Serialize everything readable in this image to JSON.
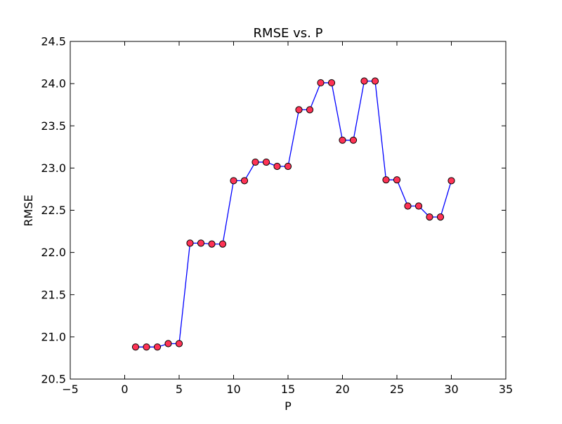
{
  "chart_data": {
    "type": "line",
    "title": "RMSE vs. P",
    "xlabel": "P",
    "ylabel": "RMSE",
    "xlim": [
      -5,
      35
    ],
    "ylim": [
      20.5,
      24.5
    ],
    "xticks": [
      "−5",
      "0",
      "5",
      "10",
      "15",
      "20",
      "25",
      "30",
      "35"
    ],
    "xtick_values": [
      -5,
      0,
      5,
      10,
      15,
      20,
      25,
      30,
      35
    ],
    "yticks": [
      "20.5",
      "21.0",
      "21.5",
      "22.0",
      "22.5",
      "23.0",
      "23.5",
      "24.0",
      "24.5"
    ],
    "ytick_values": [
      20.5,
      21.0,
      21.5,
      22.0,
      22.5,
      23.0,
      23.5,
      24.0,
      24.5
    ],
    "grid": false,
    "series": [
      {
        "line_color": "#0000ff",
        "marker_color": "#ff3355",
        "marker_edge_color": "#000000",
        "x": [
          1,
          2,
          3,
          4,
          5,
          6,
          7,
          8,
          9,
          10,
          11,
          12,
          13,
          14,
          15,
          16,
          17,
          18,
          19,
          20,
          21,
          22,
          23,
          24,
          25,
          26,
          27,
          28,
          29,
          30
        ],
        "values": [
          20.88,
          20.88,
          20.88,
          20.92,
          20.92,
          22.11,
          22.11,
          22.1,
          22.1,
          22.85,
          22.85,
          23.07,
          23.07,
          23.02,
          23.02,
          23.69,
          23.69,
          24.01,
          24.01,
          23.33,
          23.33,
          24.03,
          24.03,
          22.86,
          22.86,
          22.55,
          22.55,
          22.42,
          22.42,
          22.85
        ]
      }
    ]
  }
}
